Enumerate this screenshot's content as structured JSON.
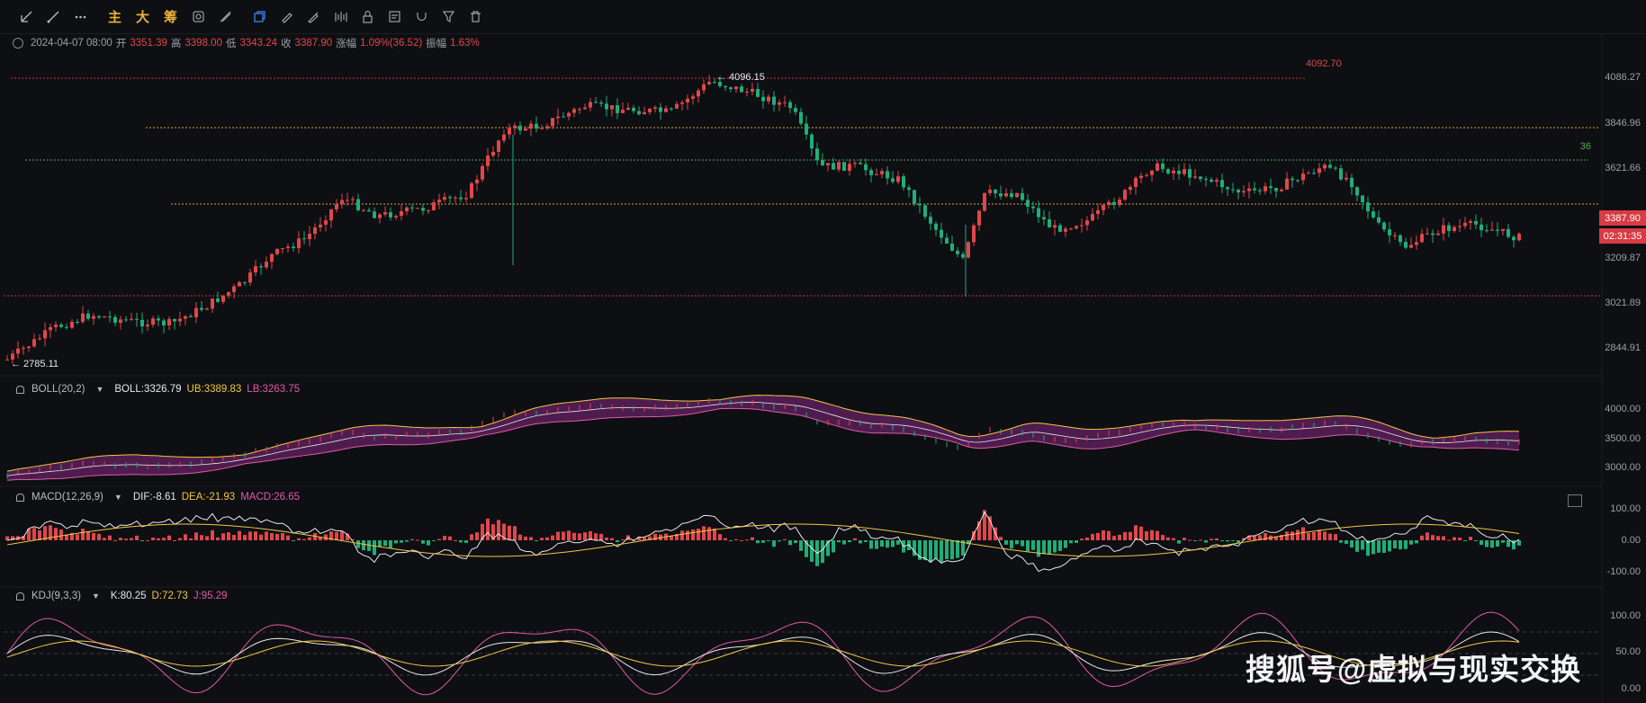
{
  "toolbar": {
    "tools": [
      "trendline-tool-icon",
      "ray-tool-icon",
      "more-tools-icon"
    ],
    "cn_buttons": [
      "主",
      "大",
      "筹"
    ],
    "tools2": [
      "zoom-icon",
      "measure-icon",
      "copy-icon",
      "pen-icon",
      "brush-icon",
      "pattern-icon",
      "lock-icon",
      "note-icon",
      "magnet-icon",
      "filter-icon",
      "delete-icon"
    ]
  },
  "ohlc": {
    "time": "2024-04-07 08:00",
    "open_label": "开",
    "open": "3351.39",
    "high_label": "高",
    "high": "3398.00",
    "low_label": "低",
    "low": "3343.24",
    "close_label": "收",
    "close": "3387.90",
    "change_label": "涨幅",
    "change": "1.09%(36.52)",
    "amp_label": "振幅",
    "amp": "1.63%"
  },
  "main_chart": {
    "price_axis": [
      "4086.27",
      "3846.96",
      "3621.66",
      "3209.87",
      "3021.89",
      "2844.91"
    ],
    "max_label": "4096.15",
    "min_label": "2785.11",
    "hline_top_label": "4092.70",
    "hline_green_label": "36",
    "current_price": "3387.90",
    "countdown": "02:31:35"
  },
  "boll": {
    "name": "BOLL(20,2)",
    "boll_label": "BOLL:3326.79",
    "ub_label": "UB:3389.83",
    "lb_label": "LB:3263.75",
    "axis": [
      "4000.00",
      "3500.00",
      "3000.00"
    ]
  },
  "macd": {
    "name": "MACD(12,26,9)",
    "dif_label": "DIF:-8.61",
    "dea_label": "DEA:-21.93",
    "macd_label": "MACD:26.65",
    "axis": [
      "100.00",
      "0.00",
      "-100.00"
    ]
  },
  "kdj": {
    "name": "KDJ(9,3,3)",
    "k_label": "K:80.25",
    "d_label": "D:72.73",
    "j_label": "J:95.29",
    "axis": [
      "100.00",
      "50.00",
      "0.00"
    ]
  },
  "colors": {
    "up": "#e0474c",
    "down": "#1fae7a",
    "accent": "#3b82f6",
    "boll_fill": "#5a1f5a"
  },
  "watermark": "搜狐号@虚拟与现实交换"
}
